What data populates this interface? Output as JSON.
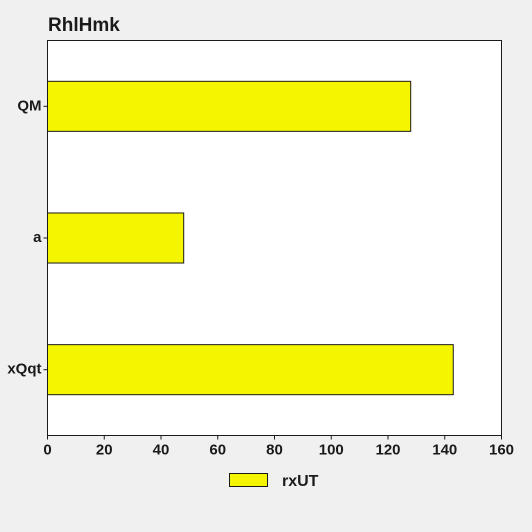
{
  "chart_data": {
    "type": "bar",
    "orientation": "horizontal",
    "title": "RhlHmk",
    "xlabel": "",
    "ylabel": "",
    "categories": [
      "QM",
      "a",
      "xQqt"
    ],
    "series": [
      {
        "name": "rxUT",
        "values": [
          128,
          48,
          143
        ],
        "color": "#f5f500"
      }
    ],
    "xlim": [
      0,
      160
    ],
    "xticks": [
      0,
      20,
      40,
      60,
      80,
      100,
      120,
      140,
      160
    ],
    "grid": false,
    "legend": "bottom-center"
  },
  "colors": {
    "background": "#f0f0f0",
    "plot_background": "#ffffff",
    "bar_fill": "#f5f500",
    "bar_stroke": "#1a1a1a"
  }
}
